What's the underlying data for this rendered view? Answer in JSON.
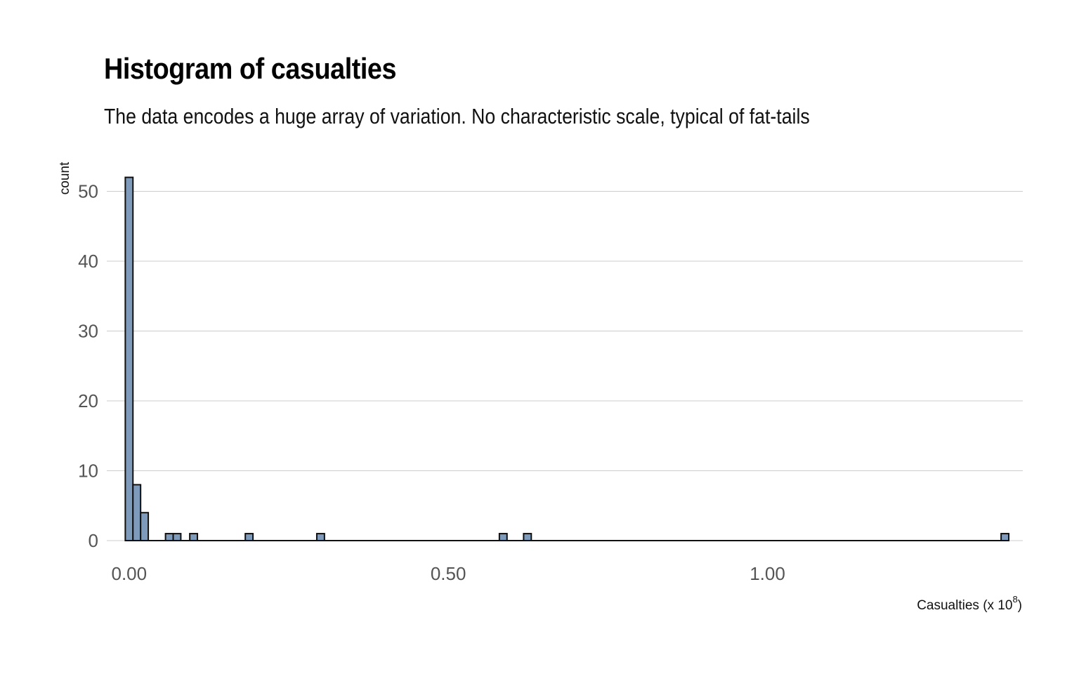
{
  "chart_data": {
    "type": "bar",
    "title": "Histogram of casualties",
    "subtitle": "The data encodes a huge array of variation. No characteristic scale, typical of fat-tails",
    "xlabel": "Casualties (x 10",
    "xlabel_exponent": "8",
    "xlabel_close": ")",
    "ylabel": "count",
    "xlim": [
      -0.035,
      1.4
    ],
    "ylim": [
      0,
      52
    ],
    "x_ticks": [
      {
        "value": 0.0,
        "label": "0.00"
      },
      {
        "value": 0.5,
        "label": "0.50"
      },
      {
        "value": 1.0,
        "label": "1.00"
      }
    ],
    "y_ticks": [
      {
        "value": 0,
        "label": "0"
      },
      {
        "value": 10,
        "label": "10"
      },
      {
        "value": 20,
        "label": "20"
      },
      {
        "value": 30,
        "label": "30"
      },
      {
        "value": 40,
        "label": "40"
      },
      {
        "value": 50,
        "label": "50"
      }
    ],
    "bin_width": 0.012,
    "bins": [
      {
        "start": -0.006,
        "count": 52
      },
      {
        "start": 0.006,
        "count": 8
      },
      {
        "start": 0.018,
        "count": 4
      },
      {
        "start": 0.057,
        "count": 1
      },
      {
        "start": 0.069,
        "count": 1
      },
      {
        "start": 0.095,
        "count": 1
      },
      {
        "start": 0.182,
        "count": 1
      },
      {
        "start": 0.294,
        "count": 1
      },
      {
        "start": 0.58,
        "count": 1
      },
      {
        "start": 0.618,
        "count": 1
      },
      {
        "start": 1.366,
        "count": 1
      }
    ],
    "grid": "horizontal",
    "bar_fill": "#7f9bbb",
    "bar_stroke": "#111111",
    "gridline_color": "#cccccc"
  }
}
